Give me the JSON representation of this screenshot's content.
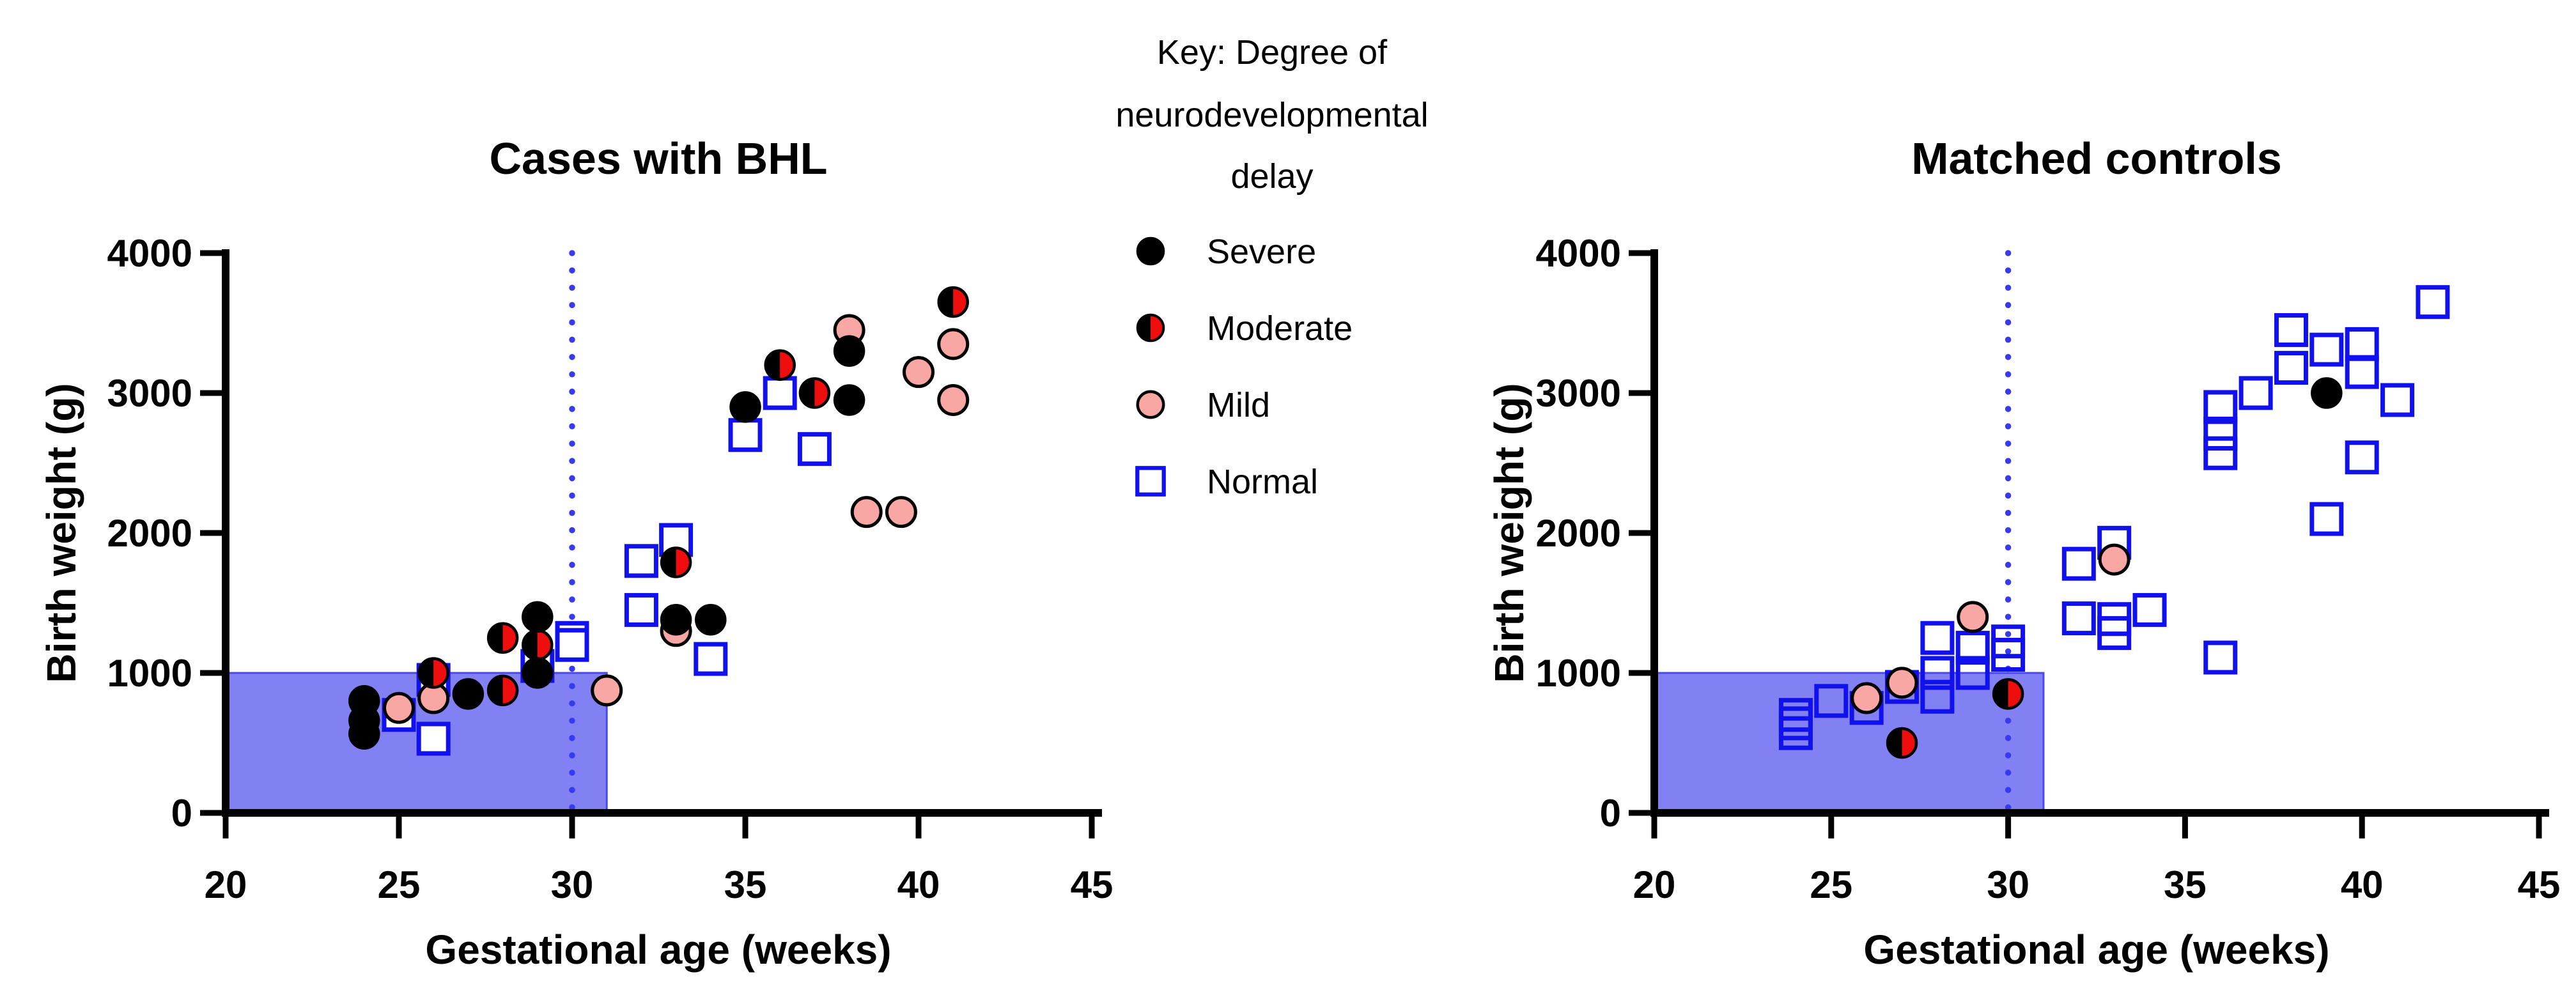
{
  "figure": {
    "legend": {
      "title_lines": [
        "Key: Degree of",
        "neurodevelopmental",
        "delay"
      ],
      "entries": [
        {
          "label": "Severe",
          "marker": "severe"
        },
        {
          "label": "Moderate",
          "marker": "moderate"
        },
        {
          "label": "Mild",
          "marker": "mild"
        },
        {
          "label": "Normal",
          "marker": "normal"
        }
      ]
    },
    "colors": {
      "black": "#000000",
      "moderate_red": "#EE0E0E",
      "mild_pink": "#F8A7A5",
      "normal_blue": "#1111EE",
      "dotted_line_blue": "#3939F0",
      "box_fill": "#8181F4",
      "box_edge": "#4949EC",
      "axis": "#000000"
    }
  },
  "chart_data": [
    {
      "type": "scatter",
      "title": "Cases with BHL",
      "xlabel": "Gestational age (weeks)",
      "ylabel": "Birth weight (g)",
      "xlim": [
        20,
        45
      ],
      "ylim": [
        0,
        4000
      ],
      "xticks": [
        20,
        25,
        30,
        35,
        40,
        45
      ],
      "yticks": [
        0,
        1000,
        2000,
        3000,
        4000
      ],
      "grid": false,
      "vline_x": 30,
      "shaded_box": {
        "x": [
          20,
          31
        ],
        "y": [
          0,
          1000
        ]
      },
      "series": [
        {
          "name": "Normal",
          "marker": "normal",
          "square_fill": "#FFFFFF",
          "points": [
            [
              25,
              700
            ],
            [
              26,
              950
            ],
            [
              26,
              530
            ],
            [
              29,
              1050
            ],
            [
              30,
              1250
            ],
            [
              30,
              1200
            ],
            [
              32,
              1800
            ],
            [
              32,
              1450
            ],
            [
              33,
              1950
            ],
            [
              34,
              1100
            ],
            [
              35,
              2700
            ],
            [
              36,
              3000
            ],
            [
              37,
              2600
            ]
          ]
        },
        {
          "name": "Mild",
          "marker": "mild",
          "points": [
            [
              25,
              750
            ],
            [
              26,
              820
            ],
            [
              31,
              875
            ],
            [
              33,
              1300
            ],
            [
              38,
              3450
            ],
            [
              38.5,
              2150
            ],
            [
              39.5,
              2150
            ],
            [
              40,
              3150
            ],
            [
              41,
              3350
            ],
            [
              41,
              2950
            ]
          ]
        },
        {
          "name": "Moderate",
          "marker": "moderate",
          "points": [
            [
              26,
              1000
            ],
            [
              28,
              1250
            ],
            [
              28,
              875
            ],
            [
              29,
              1200
            ],
            [
              33,
              1790
            ],
            [
              36,
              3200
            ],
            [
              37,
              3000
            ],
            [
              41,
              3650
            ]
          ]
        },
        {
          "name": "Severe",
          "marker": "severe",
          "points": [
            [
              24,
              800
            ],
            [
              24,
              660
            ],
            [
              24,
              565
            ],
            [
              27,
              850
            ],
            [
              29,
              1400
            ],
            [
              29,
              1000
            ],
            [
              33,
              1380
            ],
            [
              34,
              1380
            ],
            [
              35,
              2900
            ],
            [
              38,
              3300
            ],
            [
              38,
              2950
            ]
          ]
        }
      ]
    },
    {
      "type": "scatter",
      "title": "Matched controls",
      "xlabel": "Gestational age (weeks)",
      "ylabel": "Birth weight (g)",
      "xlim": [
        20,
        45
      ],
      "ylim": [
        0,
        4000
      ],
      "xticks": [
        20,
        25,
        30,
        35,
        40,
        45
      ],
      "yticks": [
        0,
        1000,
        2000,
        3000,
        4000
      ],
      "grid": false,
      "vline_x": 30,
      "shaded_box": {
        "x": [
          20,
          31
        ],
        "y": [
          0,
          1000
        ]
      },
      "series": [
        {
          "name": "Normal",
          "marker": "normal",
          "square_fill": "none",
          "points": [
            [
              24,
              700
            ],
            [
              24,
              640
            ],
            [
              24,
              570
            ],
            [
              25,
              800
            ],
            [
              26,
              750
            ],
            [
              27,
              900
            ],
            [
              28,
              1250
            ],
            [
              28,
              1000
            ],
            [
              28,
              830
            ],
            [
              29,
              1180
            ],
            [
              29,
              1000
            ],
            [
              30,
              1225
            ],
            [
              30,
              1130
            ],
            [
              32,
              1780
            ],
            [
              32,
              1390
            ],
            [
              33,
              1930
            ],
            [
              33,
              1385
            ],
            [
              33,
              1285
            ],
            [
              34,
              1450
            ],
            [
              36,
              1110
            ],
            [
              36,
              2900
            ],
            [
              36,
              2710
            ],
            [
              36,
              2570
            ],
            [
              37,
              3000
            ],
            [
              38,
              3450
            ],
            [
              38,
              3180
            ],
            [
              39,
              3310
            ],
            [
              39,
              2100
            ],
            [
              40,
              3350
            ],
            [
              40,
              3150
            ],
            [
              40,
              2540
            ],
            [
              41,
              2950
            ],
            [
              42,
              3650
            ]
          ]
        },
        {
          "name": "Mild",
          "marker": "mild",
          "points": [
            [
              26,
              820
            ],
            [
              27,
              930
            ],
            [
              29,
              1400
            ],
            [
              33,
              1810
            ]
          ]
        },
        {
          "name": "Moderate",
          "marker": "moderate",
          "points": [
            [
              27,
              500
            ],
            [
              30,
              850
            ]
          ]
        },
        {
          "name": "Severe",
          "marker": "severe",
          "points": [
            [
              39,
              3000
            ]
          ]
        }
      ]
    }
  ]
}
